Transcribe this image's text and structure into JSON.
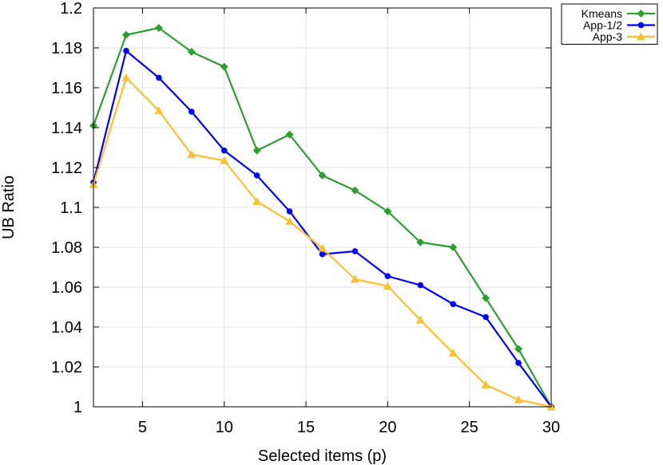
{
  "chart_data": {
    "type": "line",
    "xlabel": "Selected items (p)",
    "ylabel": "UB Ratio",
    "xlim": [
      2,
      30
    ],
    "ylim": [
      1,
      1.2
    ],
    "xticks": [
      5,
      10,
      15,
      20,
      25,
      30
    ],
    "xtick_labels": [
      "5",
      "10",
      "15",
      "20",
      "25",
      "30"
    ],
    "yticks": [
      1,
      1.02,
      1.04,
      1.06,
      1.08,
      1.1,
      1.12,
      1.14,
      1.16,
      1.18,
      1.2
    ],
    "ytick_labels": [
      "1",
      "1.02",
      "1.04",
      "1.06",
      "1.08",
      "1.1",
      "1.12",
      "1.14",
      "1.16",
      "1.18",
      "1.2"
    ],
    "grid": true,
    "legend_position": "outside top-right",
    "x": [
      2,
      4,
      6,
      8,
      10,
      12,
      14,
      16,
      18,
      20,
      22,
      24,
      26,
      28,
      30
    ],
    "series": [
      {
        "name": "Kmeans",
        "color": "#2ca02c",
        "marker": "diamond",
        "values": [
          1.141,
          1.1865,
          1.19,
          1.178,
          1.1705,
          1.1285,
          1.1365,
          1.116,
          1.1085,
          1.098,
          1.0825,
          1.08,
          1.0545,
          1.029,
          1.0
        ]
      },
      {
        "name": "App-1/2",
        "color": "#0000ff",
        "marker": "circle",
        "values": [
          1.1125,
          1.1785,
          1.165,
          1.148,
          1.1285,
          1.116,
          1.098,
          1.0765,
          1.078,
          1.0655,
          1.061,
          1.0515,
          1.045,
          1.022,
          1.0
        ]
      },
      {
        "name": "App-3",
        "color": "#fbc02d",
        "marker": "triangle",
        "values": [
          1.1115,
          1.165,
          1.1485,
          1.1265,
          1.1235,
          1.103,
          1.093,
          1.0795,
          1.064,
          1.0605,
          1.0435,
          1.027,
          1.011,
          1.0035,
          1.0
        ]
      }
    ]
  }
}
